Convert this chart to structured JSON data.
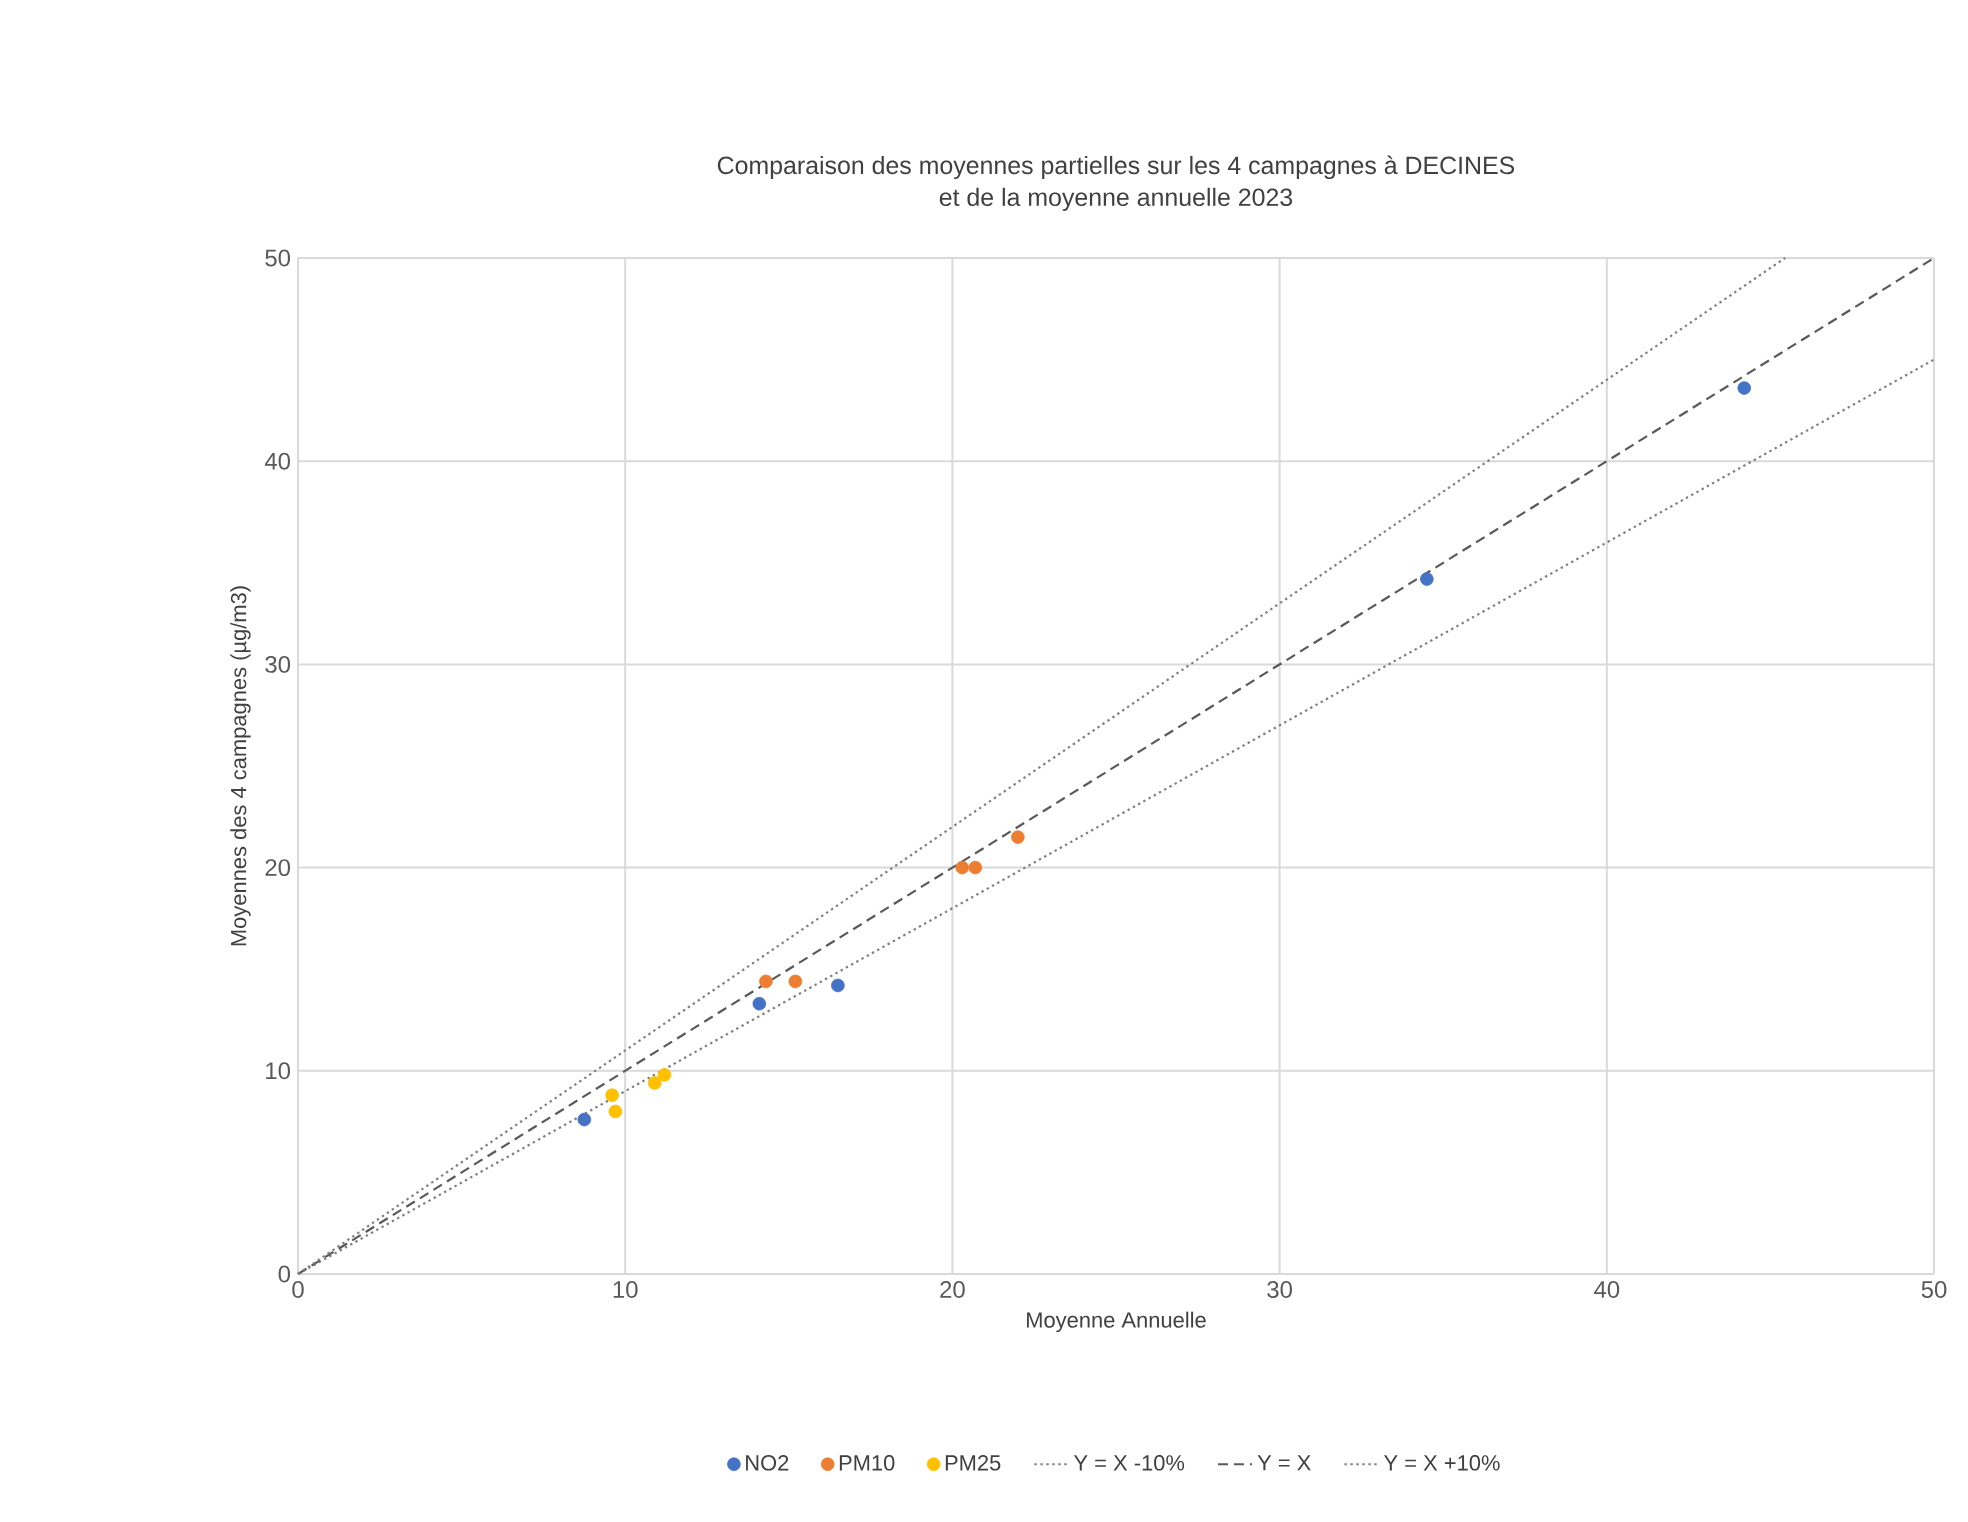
{
  "chart_data": {
    "type": "scatter",
    "title": "Comparaison des moyennes partielles sur les 4 campagnes à DECINES\net de la moyenne annuelle 2023",
    "xlabel": "Moyenne Annuelle",
    "ylabel": "Moyennes des 4 campagnes (µg/m3)",
    "xlim": [
      0,
      50
    ],
    "ylim": [
      0,
      50
    ],
    "xticks": [
      0,
      10,
      20,
      30,
      40,
      50
    ],
    "yticks": [
      0,
      10,
      20,
      30,
      40,
      50
    ],
    "grid": true,
    "legend": "bottom",
    "series": [
      {
        "name": "NO2",
        "marker": "circle",
        "color": "#4472c4",
        "x": [
          8.75,
          14.1,
          16.5,
          34.5,
          44.2
        ],
        "values": [
          7.6,
          13.3,
          14.2,
          34.2,
          43.6
        ]
      },
      {
        "name": "PM10",
        "marker": "circle",
        "color": "#ed7d31",
        "x": [
          14.3,
          15.2,
          20.3,
          20.7,
          22.0
        ],
        "values": [
          14.4,
          14.4,
          20.0,
          20.0,
          21.5
        ]
      },
      {
        "name": "PM25",
        "marker": "circle",
        "color": "#ffc000",
        "x": [
          9.6,
          9.7,
          10.9,
          11.2
        ],
        "values": [
          8.8,
          8.0,
          9.4,
          9.8
        ]
      },
      {
        "name": "Y = X -10%",
        "type": "line",
        "marker": "none",
        "line_style": "dotted",
        "color": "#7f7f7f",
        "x": [
          0,
          50
        ],
        "values": [
          0,
          45
        ]
      },
      {
        "name": "Y = X",
        "type": "line",
        "marker": "none",
        "line_style": "dashed",
        "color": "#595959",
        "x": [
          0,
          50
        ],
        "values": [
          0,
          50
        ]
      },
      {
        "name": "Y = X +10%",
        "type": "line",
        "marker": "none",
        "line_style": "dotted",
        "color": "#7f7f7f",
        "x": [
          0,
          45.45
        ],
        "values": [
          0,
          50
        ]
      }
    ]
  }
}
